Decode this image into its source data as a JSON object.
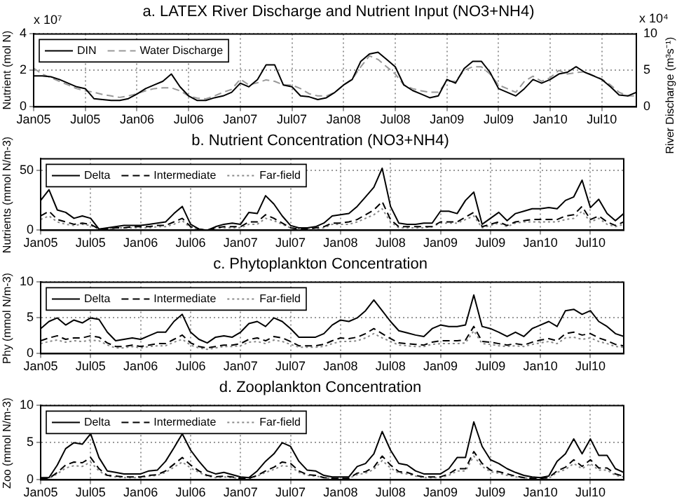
{
  "chart_data": [
    {
      "type": "line",
      "title": "a. LATEX River Discharge and Nutrient Input (NO3+NH4)",
      "ylabel": "Nutrient (mol N)",
      "y2label": "River Discharge (m³s⁻¹)",
      "annotations": [
        "x 10⁷",
        "x 10⁴"
      ],
      "x": [
        "2005-01",
        "2005-02",
        "2005-03",
        "2005-04",
        "2005-05",
        "2005-06",
        "2005-07",
        "2005-08",
        "2005-09",
        "2005-10",
        "2005-11",
        "2005-12",
        "2006-01",
        "2006-02",
        "2006-03",
        "2006-04",
        "2006-05",
        "2006-06",
        "2006-07",
        "2006-08",
        "2006-09",
        "2006-10",
        "2006-11",
        "2006-12",
        "2007-01",
        "2007-02",
        "2007-03",
        "2007-04",
        "2007-05",
        "2007-06",
        "2007-07",
        "2007-08",
        "2007-09",
        "2007-10",
        "2007-11",
        "2007-12",
        "2008-01",
        "2008-02",
        "2008-03",
        "2008-04",
        "2008-05",
        "2008-06",
        "2008-07",
        "2008-08",
        "2008-09",
        "2008-10",
        "2008-11",
        "2008-12",
        "2009-01",
        "2009-02",
        "2009-03",
        "2009-04",
        "2009-05",
        "2009-06",
        "2009-07",
        "2009-08",
        "2009-09",
        "2009-10",
        "2009-11",
        "2009-12",
        "2010-01",
        "2010-02",
        "2010-03",
        "2010-04",
        "2010-05",
        "2010-06",
        "2010-07",
        "2010-08",
        "2010-09",
        "2010-10",
        "2010-11"
      ],
      "series": [
        {
          "name": "DIN",
          "color": "#000000",
          "line_style": "solid",
          "values": [
            1.7,
            1.7,
            1.65,
            1.5,
            1.3,
            1.1,
            1.0,
            0.45,
            0.4,
            0.35,
            0.35,
            0.45,
            0.7,
            1.0,
            1.2,
            1.4,
            1.8,
            1.1,
            0.6,
            0.35,
            0.35,
            0.5,
            0.6,
            0.8,
            1.3,
            1.1,
            1.5,
            2.3,
            2.3,
            1.2,
            1.1,
            0.6,
            0.55,
            0.4,
            0.5,
            0.8,
            1.2,
            1.5,
            2.5,
            2.9,
            3.0,
            2.6,
            2.2,
            1.2,
            0.9,
            0.7,
            0.5,
            0.6,
            1.5,
            1.3,
            2.1,
            2.5,
            2.5,
            1.9,
            1.0,
            0.8,
            0.6,
            1.0,
            1.5,
            1.3,
            1.5,
            1.8,
            1.9,
            2.2,
            1.9,
            1.7,
            1.5,
            1.1,
            0.65,
            0.6,
            0.8
          ]
        },
        {
          "name": "Water Discharge",
          "color": "#999999",
          "line_style": "dashed",
          "axis": "y2",
          "values": [
            5.3,
            4.5,
            4.0,
            3.5,
            3.0,
            2.5,
            2.2,
            2.0,
            1.7,
            1.5,
            1.3,
            1.5,
            1.8,
            2.2,
            2.5,
            2.6,
            2.6,
            2.2,
            1.5,
            1.2,
            1.1,
            1.5,
            2.0,
            2.4,
            3.8,
            3.0,
            3.3,
            3.7,
            3.5,
            3.0,
            3.0,
            2.5,
            1.8,
            1.5,
            1.5,
            2.0,
            3.0,
            3.8,
            5.5,
            7.0,
            6.5,
            5.5,
            4.5,
            3.0,
            2.5,
            2.2,
            2.0,
            2.0,
            3.5,
            3.5,
            5.0,
            5.5,
            5.5,
            4.5,
            3.0,
            2.5,
            2.0,
            3.5,
            4.2,
            3.5,
            4.0,
            5.0,
            4.5,
            4.7,
            4.8,
            4.3,
            3.8,
            3.0,
            2.0,
            1.5,
            1.5
          ]
        }
      ],
      "xlim": [
        "2005-01",
        "2010-11"
      ],
      "xticks": [
        {
          "value": "2005-01",
          "label": "Jan05"
        },
        {
          "value": "2005-07",
          "label": "Jul05"
        },
        {
          "value": "2006-01",
          "label": "Jan06"
        },
        {
          "value": "2006-07",
          "label": "Jul06"
        },
        {
          "value": "2007-01",
          "label": "Jan07"
        },
        {
          "value": "2007-07",
          "label": "Jul07"
        },
        {
          "value": "2008-01",
          "label": "Jan08"
        },
        {
          "value": "2008-07",
          "label": "Jul08"
        },
        {
          "value": "2009-01",
          "label": "Jan09"
        },
        {
          "value": "2009-07",
          "label": "Jul09"
        },
        {
          "value": "2010-01",
          "label": "Jan10"
        },
        {
          "value": "2010-07",
          "label": "Jul10"
        }
      ],
      "ylim": [
        0,
        4
      ],
      "yticks": [
        0,
        2,
        4
      ],
      "y2lim": [
        0,
        10
      ],
      "y2ticks": [
        0,
        5,
        10
      ],
      "grid": true,
      "legend": "top left"
    },
    {
      "type": "line",
      "title": "b. Nutrient Concentration (NO3+NH4)",
      "ylabel": "Nutrients (mmol N/m-3)",
      "x": [
        "2005-01",
        "2005-02",
        "2005-03",
        "2005-04",
        "2005-05",
        "2005-06",
        "2005-07",
        "2005-08",
        "2005-09",
        "2005-10",
        "2005-11",
        "2005-12",
        "2006-01",
        "2006-02",
        "2006-03",
        "2006-04",
        "2006-05",
        "2006-06",
        "2006-07",
        "2006-08",
        "2006-09",
        "2006-10",
        "2006-11",
        "2006-12",
        "2007-01",
        "2007-02",
        "2007-03",
        "2007-04",
        "2007-05",
        "2007-06",
        "2007-07",
        "2007-08",
        "2007-09",
        "2007-10",
        "2007-11",
        "2007-12",
        "2008-01",
        "2008-02",
        "2008-03",
        "2008-04",
        "2008-05",
        "2008-06",
        "2008-07",
        "2008-08",
        "2008-09",
        "2008-10",
        "2008-11",
        "2008-12",
        "2009-01",
        "2009-02",
        "2009-03",
        "2009-04",
        "2009-05",
        "2009-06",
        "2009-07",
        "2009-08",
        "2009-09",
        "2009-10",
        "2009-11",
        "2009-12",
        "2010-01",
        "2010-02",
        "2010-03",
        "2010-04",
        "2010-05",
        "2010-06",
        "2010-07",
        "2010-08",
        "2010-09",
        "2010-10",
        "2010-11"
      ],
      "series": [
        {
          "name": "Delta",
          "color": "#000000",
          "line_style": "solid",
          "values": [
            25,
            34,
            17,
            15,
            10,
            12,
            10,
            1,
            2,
            3,
            4,
            4,
            4,
            5,
            6,
            7,
            14,
            20,
            5,
            1,
            0,
            3,
            5,
            6,
            5,
            15,
            14,
            29,
            22,
            12,
            4,
            2,
            2,
            3,
            6,
            12,
            13,
            14,
            20,
            28,
            36,
            52,
            20,
            6,
            5,
            5,
            6,
            6,
            16,
            16,
            14,
            25,
            32,
            5,
            10,
            15,
            8,
            14,
            16,
            18,
            18,
            19,
            18,
            25,
            28,
            42,
            19,
            26,
            14,
            8,
            14
          ]
        },
        {
          "name": "Intermediate",
          "color": "#000000",
          "line_style": "dashed",
          "values": [
            12,
            16,
            9,
            7,
            5,
            6,
            5,
            1,
            1,
            2,
            2,
            3,
            3,
            3,
            4,
            4,
            7,
            10,
            3,
            1,
            0,
            2,
            3,
            3,
            3,
            7,
            7,
            13,
            10,
            6,
            2,
            1,
            1,
            2,
            3,
            6,
            6,
            7,
            9,
            13,
            17,
            24,
            9,
            3,
            3,
            3,
            3,
            3,
            7,
            7,
            7,
            11,
            15,
            3,
            5,
            7,
            4,
            7,
            8,
            9,
            9,
            9,
            9,
            12,
            13,
            20,
            9,
            12,
            7,
            4,
            7
          ]
        },
        {
          "name": "Far-field",
          "color": "#888888",
          "line_style": "dotted",
          "values": [
            9,
            12,
            7,
            5,
            4,
            5,
            4,
            1,
            1,
            2,
            2,
            2,
            2,
            2,
            3,
            3,
            5,
            8,
            2,
            1,
            0,
            2,
            2,
            2,
            2,
            5,
            5,
            10,
            8,
            5,
            2,
            1,
            1,
            1,
            2,
            5,
            5,
            5,
            7,
            10,
            13,
            18,
            7,
            2,
            2,
            2,
            2,
            3,
            6,
            6,
            6,
            9,
            12,
            2,
            4,
            6,
            3,
            6,
            7,
            7,
            7,
            7,
            7,
            9,
            10,
            16,
            7,
            10,
            5,
            3,
            5
          ]
        }
      ],
      "xlim": [
        "2005-01",
        "2010-11"
      ],
      "xticks": [
        {
          "value": "2005-01",
          "label": "Jan05"
        },
        {
          "value": "2005-07",
          "label": "Jul05"
        },
        {
          "value": "2006-01",
          "label": "Jan06"
        },
        {
          "value": "2006-07",
          "label": "Jul06"
        },
        {
          "value": "2007-01",
          "label": "Jan07"
        },
        {
          "value": "2007-07",
          "label": "Jul07"
        },
        {
          "value": "2008-01",
          "label": "Jan08"
        },
        {
          "value": "2008-07",
          "label": "Jul08"
        },
        {
          "value": "2009-01",
          "label": "Jan09"
        },
        {
          "value": "2009-07",
          "label": "Jul09"
        },
        {
          "value": "2010-01",
          "label": "Jan10"
        },
        {
          "value": "2010-07",
          "label": "Jul10"
        }
      ],
      "ylim": [
        0,
        60
      ],
      "yticks": [
        0,
        50
      ],
      "grid": true,
      "legend": "top left"
    },
    {
      "type": "line",
      "title": "c. Phytoplankton Concentration",
      "ylabel": "Phy (mmol N/m-3)",
      "x": [
        "2005-01",
        "2005-02",
        "2005-03",
        "2005-04",
        "2005-05",
        "2005-06",
        "2005-07",
        "2005-08",
        "2005-09",
        "2005-10",
        "2005-11",
        "2005-12",
        "2006-01",
        "2006-02",
        "2006-03",
        "2006-04",
        "2006-05",
        "2006-06",
        "2006-07",
        "2006-08",
        "2006-09",
        "2006-10",
        "2006-11",
        "2006-12",
        "2007-01",
        "2007-02",
        "2007-03",
        "2007-04",
        "2007-05",
        "2007-06",
        "2007-07",
        "2007-08",
        "2007-09",
        "2007-10",
        "2007-11",
        "2007-12",
        "2008-01",
        "2008-02",
        "2008-03",
        "2008-04",
        "2008-05",
        "2008-06",
        "2008-07",
        "2008-08",
        "2008-09",
        "2008-10",
        "2008-11",
        "2008-12",
        "2009-01",
        "2009-02",
        "2009-03",
        "2009-04",
        "2009-05",
        "2009-06",
        "2009-07",
        "2009-08",
        "2009-09",
        "2009-10",
        "2009-11",
        "2009-12",
        "2010-01",
        "2010-02",
        "2010-03",
        "2010-04",
        "2010-05",
        "2010-06",
        "2010-07",
        "2010-08",
        "2010-09",
        "2010-10",
        "2010-11"
      ],
      "series": [
        {
          "name": "Delta",
          "color": "#000000",
          "line_style": "solid",
          "values": [
            3.5,
            4.5,
            5,
            4,
            4.7,
            4.3,
            5,
            4.8,
            3,
            1.8,
            2,
            2.2,
            2,
            2.5,
            3,
            3,
            4.5,
            5.5,
            3,
            2,
            1.5,
            2.3,
            2.5,
            2.3,
            3,
            4.2,
            4.5,
            3.8,
            5,
            4.5,
            3.5,
            2.3,
            2.3,
            2.3,
            2.8,
            4,
            4.7,
            4.5,
            5,
            6,
            7.5,
            6,
            4.5,
            3.2,
            2.9,
            2.6,
            2.4,
            3.5,
            4,
            3.8,
            3.8,
            4,
            8.2,
            3.8,
            3.5,
            3,
            2.4,
            3,
            2.4,
            3.5,
            4,
            4.5,
            3.8,
            6,
            6.2,
            5.5,
            6,
            4.5,
            3.8,
            2.8,
            2.4
          ]
        },
        {
          "name": "Intermediate",
          "color": "#000000",
          "line_style": "dashed",
          "values": [
            1.8,
            2.2,
            2.5,
            2,
            2.2,
            2.2,
            2.5,
            2.3,
            1.5,
            1,
            1,
            1.2,
            1,
            1.2,
            1.4,
            1.4,
            2,
            2.6,
            1.5,
            1,
            0.8,
            1,
            1.2,
            1.2,
            1.4,
            2,
            2.2,
            1.8,
            2.4,
            2.2,
            1.7,
            1.1,
            1.1,
            1.1,
            1.3,
            1.8,
            2.2,
            2.1,
            2.3,
            2.8,
            3.5,
            2.8,
            2.1,
            1.5,
            1.4,
            1.3,
            1.2,
            1.6,
            1.8,
            1.8,
            1.8,
            1.9,
            3.8,
            1.7,
            1.6,
            1.4,
            1.2,
            1.4,
            1.2,
            1.6,
            1.9,
            2.1,
            1.8,
            2.8,
            3,
            2.6,
            2.8,
            2.2,
            1.8,
            1.3,
            1.1
          ]
        },
        {
          "name": "Far-field",
          "color": "#888888",
          "line_style": "dotted",
          "values": [
            1.4,
            1.7,
            1.9,
            1.6,
            1.8,
            1.7,
            1.9,
            1.8,
            1.2,
            0.8,
            0.8,
            1,
            0.8,
            1,
            1.1,
            1.1,
            1.6,
            2,
            1.2,
            0.8,
            0.6,
            0.8,
            1,
            1,
            1.1,
            1.6,
            1.7,
            1.4,
            1.9,
            1.7,
            1.3,
            0.9,
            0.9,
            0.9,
            1,
            1.4,
            1.7,
            1.7,
            1.8,
            2.2,
            2.8,
            2.2,
            1.7,
            1.2,
            1.1,
            1,
            1,
            1.3,
            1.4,
            1.4,
            1.4,
            1.5,
            3.2,
            1.4,
            1.3,
            1.1,
            1,
            1.1,
            1,
            1.3,
            1.5,
            1.7,
            1.4,
            2.2,
            2.3,
            2,
            2.2,
            1.7,
            1.4,
            1,
            0.9
          ]
        }
      ],
      "xlim": [
        "2005-01",
        "2010-11"
      ],
      "xticks": [
        {
          "value": "2005-01",
          "label": "Jan05"
        },
        {
          "value": "2005-07",
          "label": "Jul05"
        },
        {
          "value": "2006-01",
          "label": "Jan06"
        },
        {
          "value": "2006-07",
          "label": "Jul06"
        },
        {
          "value": "2007-01",
          "label": "Jan07"
        },
        {
          "value": "2007-07",
          "label": "Jul07"
        },
        {
          "value": "2008-01",
          "label": "Jan08"
        },
        {
          "value": "2008-07",
          "label": "Jul08"
        },
        {
          "value": "2009-01",
          "label": "Jan09"
        },
        {
          "value": "2009-07",
          "label": "Jul09"
        },
        {
          "value": "2010-01",
          "label": "Jan10"
        },
        {
          "value": "2010-07",
          "label": "Jul10"
        }
      ],
      "ylim": [
        0,
        10
      ],
      "yticks": [
        0,
        5,
        10
      ],
      "grid": true,
      "legend": "top left"
    },
    {
      "type": "line",
      "title": "d. Zooplankton Concentration",
      "ylabel": "Zoo (mmol N/m-3)",
      "x": [
        "2005-01",
        "2005-02",
        "2005-03",
        "2005-04",
        "2005-05",
        "2005-06",
        "2005-07",
        "2005-08",
        "2005-09",
        "2005-10",
        "2005-11",
        "2005-12",
        "2006-01",
        "2006-02",
        "2006-03",
        "2006-04",
        "2006-05",
        "2006-06",
        "2006-07",
        "2006-08",
        "2006-09",
        "2006-10",
        "2006-11",
        "2006-12",
        "2007-01",
        "2007-02",
        "2007-03",
        "2007-04",
        "2007-05",
        "2007-06",
        "2007-07",
        "2007-08",
        "2007-09",
        "2007-10",
        "2007-11",
        "2007-12",
        "2008-01",
        "2008-02",
        "2008-03",
        "2008-04",
        "2008-05",
        "2008-06",
        "2008-07",
        "2008-08",
        "2008-09",
        "2008-10",
        "2008-11",
        "2008-12",
        "2009-01",
        "2009-02",
        "2009-03",
        "2009-04",
        "2009-05",
        "2009-06",
        "2009-07",
        "2009-08",
        "2009-09",
        "2009-10",
        "2009-11",
        "2009-12",
        "2010-01",
        "2010-02",
        "2010-03",
        "2010-04",
        "2010-05",
        "2010-06",
        "2010-07",
        "2010-08",
        "2010-09",
        "2010-10",
        "2010-11"
      ],
      "series": [
        {
          "name": "Delta",
          "color": "#000000",
          "line_style": "solid",
          "values": [
            0.3,
            0.3,
            2,
            4.2,
            5,
            4.8,
            6.2,
            3,
            1.2,
            1,
            0.8,
            0.8,
            0.8,
            1.2,
            1.3,
            2.5,
            4.3,
            6.2,
            4,
            2.5,
            1.2,
            0.8,
            1,
            0.7,
            0.4,
            0.3,
            1.2,
            2.5,
            3.5,
            5,
            4.5,
            2.5,
            1.3,
            1.2,
            0.6,
            0.4,
            0.4,
            0.4,
            1.8,
            2.2,
            3.5,
            6.5,
            4,
            2.2,
            2,
            1.2,
            0.8,
            0.8,
            0.8,
            1.5,
            3,
            3,
            7.8,
            4.5,
            2.7,
            2.2,
            1.5,
            1,
            0.6,
            0.4,
            0.3,
            0.5,
            2.5,
            3.5,
            5.5,
            3.5,
            5.5,
            3.3,
            3.3,
            1.5,
            1
          ]
        },
        {
          "name": "Intermediate",
          "color": "#000000",
          "line_style": "dashed",
          "values": [
            0.2,
            0.2,
            1,
            2,
            2.4,
            2.3,
            3,
            1.5,
            0.6,
            0.5,
            0.4,
            0.4,
            0.4,
            0.6,
            0.7,
            1.2,
            2.1,
            3,
            2,
            1.2,
            0.6,
            0.4,
            0.5,
            0.4,
            0.2,
            0.2,
            0.6,
            1.2,
            1.7,
            2.4,
            2.2,
            1.2,
            0.7,
            0.6,
            0.3,
            0.2,
            0.2,
            0.2,
            0.9,
            1.1,
            1.7,
            3.2,
            2,
            1.1,
            1,
            0.6,
            0.4,
            0.4,
            0.4,
            0.8,
            1.5,
            1.5,
            3.8,
            2.2,
            1.3,
            1.1,
            0.8,
            0.5,
            0.3,
            0.2,
            0.2,
            0.3,
            1.2,
            1.7,
            2.7,
            1.8,
            2.7,
            1.6,
            1.6,
            0.8,
            0.5
          ]
        },
        {
          "name": "Far-field",
          "color": "#888888",
          "line_style": "dotted",
          "values": [
            0.2,
            0.2,
            0.8,
            1.6,
            1.9,
            1.8,
            2.4,
            1.2,
            0.5,
            0.4,
            0.3,
            0.3,
            0.3,
            0.5,
            0.6,
            1,
            1.7,
            2.4,
            1.6,
            1,
            0.5,
            0.3,
            0.4,
            0.3,
            0.2,
            0.2,
            0.5,
            1,
            1.4,
            1.9,
            1.8,
            1,
            0.6,
            0.5,
            0.3,
            0.2,
            0.2,
            0.2,
            0.7,
            0.9,
            1.4,
            2.6,
            1.6,
            0.9,
            0.8,
            0.5,
            0.3,
            0.3,
            0.3,
            0.6,
            1.2,
            1.2,
            3.2,
            1.8,
            1.1,
            0.9,
            0.6,
            0.4,
            0.3,
            0.2,
            0.2,
            0.2,
            1,
            1.4,
            2.2,
            1.5,
            2.2,
            1.3,
            1.3,
            0.6,
            0.4
          ]
        }
      ],
      "xlim": [
        "2005-01",
        "2010-11"
      ],
      "xticks": [
        {
          "value": "2005-01",
          "label": "Jan05"
        },
        {
          "value": "2005-07",
          "label": "Jul05"
        },
        {
          "value": "2006-01",
          "label": "Jan06"
        },
        {
          "value": "2006-07",
          "label": "Jul06"
        },
        {
          "value": "2007-01",
          "label": "Jan07"
        },
        {
          "value": "2007-07",
          "label": "Jul07"
        },
        {
          "value": "2008-01",
          "label": "Jan08"
        },
        {
          "value": "2008-07",
          "label": "Jul08"
        },
        {
          "value": "2009-01",
          "label": "Jan09"
        },
        {
          "value": "2009-07",
          "label": "Jul09"
        },
        {
          "value": "2010-01",
          "label": "Jan10"
        },
        {
          "value": "2010-07",
          "label": "Jul10"
        }
      ],
      "ylim": [
        0,
        10
      ],
      "yticks": [
        0,
        5,
        10
      ],
      "grid": true,
      "legend": "top left"
    }
  ]
}
